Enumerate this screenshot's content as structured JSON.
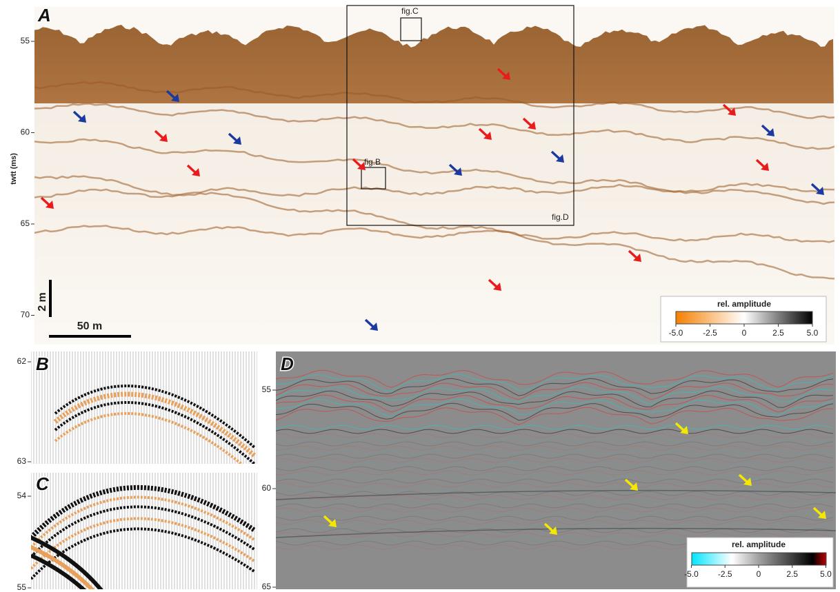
{
  "panels": {
    "A": {
      "letter": "A",
      "y_label": "twtt (ms)",
      "yticks": [
        55,
        60,
        65,
        70
      ],
      "box_labels": {
        "B": "fig.B",
        "C": "fig.C",
        "D": "fig.D"
      },
      "scale_vertical": "2 m",
      "scale_horizontal": "50 m",
      "colorbar": {
        "title": "rel. amplitude",
        "ticks": [
          {
            "value": -5,
            "label": "-5.0"
          },
          -2.5,
          0,
          2.5,
          {
            "value": 5,
            "label": "5.0"
          }
        ]
      }
    },
    "B": {
      "letter": "B",
      "yticks": [
        62,
        63
      ]
    },
    "C": {
      "letter": "C",
      "yticks": [
        54,
        55
      ]
    },
    "D": {
      "letter": "D",
      "yticks": [
        55,
        60,
        65
      ],
      "colorbar": {
        "title": "rel. amplitude",
        "ticks": [
          {
            "value": -5,
            "label": "-5.0"
          },
          -2.5,
          0,
          2.5,
          {
            "value": 5,
            "label": "5.0"
          }
        ]
      }
    }
  }
}
